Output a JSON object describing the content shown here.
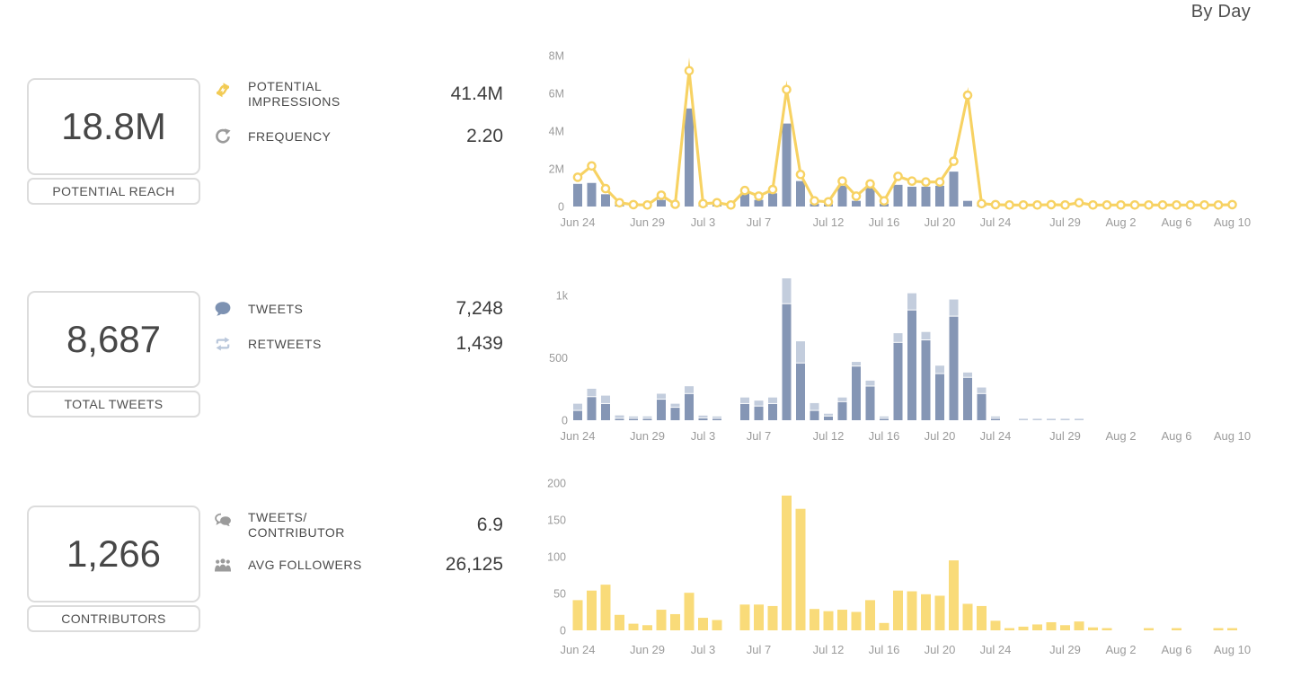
{
  "header": {
    "view_label": "By Day"
  },
  "rows": [
    {
      "total": {
        "value": "18.8M",
        "label": "POTENTIAL REACH"
      },
      "stats": [
        {
          "icon": "impressions-arrows-icon",
          "label": "POTENTIAL\nIMPRESSIONS",
          "value": "41.4M"
        },
        {
          "icon": "frequency-refresh-icon",
          "label": "FREQUENCY",
          "value": "2.20"
        }
      ]
    },
    {
      "total": {
        "value": "8,687",
        "label": "TOTAL TWEETS"
      },
      "stats": [
        {
          "icon": "tweet-bubble-icon",
          "label": "TWEETS",
          "value": "7,248"
        },
        {
          "icon": "retweet-icon",
          "label": "RETWEETS",
          "value": "1,439"
        }
      ]
    },
    {
      "total": {
        "value": "1,266",
        "label": "CONTRIBUTORS"
      },
      "stats": [
        {
          "icon": "tweets-per-contributor-icon",
          "label": "TWEETS/\nCONTRIBUTOR",
          "value": "6.9"
        },
        {
          "icon": "avg-followers-icon",
          "label": "AVG FOLLOWERS",
          "value": "26,125"
        }
      ]
    }
  ],
  "colors": {
    "accent_yellow": "#F7D263",
    "bar_yellow": "#F9DB79",
    "bar_blue": "#8596B5",
    "stack_light_blue": "#C3CDDD",
    "axis_text": "#9B9B9B"
  },
  "chart_data": [
    {
      "type": "bar",
      "subtype": "bar-plus-line",
      "title": "Potential reach (bars) and potential impressions (line) by day",
      "unit": "millions",
      "legend": "none",
      "grid": false,
      "ylim": [
        0,
        8
      ],
      "yticks": [
        {
          "v": 0,
          "label": "0"
        },
        {
          "v": 2,
          "label": "2M"
        },
        {
          "v": 4,
          "label": "4M"
        },
        {
          "v": 6,
          "label": "6M"
        },
        {
          "v": 8,
          "label": "8M"
        }
      ],
      "x": [
        "Jun 24",
        "Jun 25",
        "Jun 26",
        "Jun 27",
        "Jun 28",
        "Jun 29",
        "Jun 30",
        "Jul 1",
        "Jul 2",
        "Jul 3",
        "Jul 4",
        "Jul 5",
        "Jul 6",
        "Jul 7",
        "Jul 8",
        "Jul 9",
        "Jul 10",
        "Jul 11",
        "Jul 12",
        "Jul 13",
        "Jul 14",
        "Jul 15",
        "Jul 16",
        "Jul 17",
        "Jul 18",
        "Jul 19",
        "Jul 20",
        "Jul 21",
        "Jul 22",
        "Jul 23",
        "Jul 24",
        "Jul 25",
        "Jul 26",
        "Jul 27",
        "Jul 28",
        "Jul 29",
        "Jul 30",
        "Jul 31",
        "Aug 1",
        "Aug 2",
        "Aug 3",
        "Aug 4",
        "Aug 5",
        "Aug 6",
        "Aug 7",
        "Aug 8",
        "Aug 9",
        "Aug 10"
      ],
      "x_tick_indices": [
        0,
        5,
        9,
        13,
        18,
        22,
        26,
        30,
        35,
        39,
        43,
        47
      ],
      "series": [
        {
          "name": "Potential reach",
          "type": "bar",
          "values": [
            1.2,
            1.25,
            0.65,
            0.12,
            0.05,
            0.03,
            0.35,
            0.06,
            5.2,
            0.08,
            0.1,
            0.02,
            0.7,
            0.35,
            0.7,
            4.4,
            1.35,
            0.15,
            0.12,
            1.1,
            0.3,
            1.0,
            0.15,
            1.15,
            1.05,
            1.05,
            1.1,
            1.85,
            0.3,
            0.05,
            0,
            0,
            0,
            0,
            0.06,
            0,
            0,
            0,
            0,
            0,
            0,
            0,
            0,
            0,
            0,
            0,
            0,
            0
          ]
        },
        {
          "name": "Potential impressions",
          "type": "line",
          "values": [
            1.55,
            2.15,
            0.95,
            0.2,
            0.1,
            0.08,
            0.6,
            0.12,
            7.2,
            0.15,
            0.2,
            0.08,
            0.85,
            0.55,
            0.9,
            6.2,
            1.7,
            0.3,
            0.25,
            1.35,
            0.55,
            1.2,
            0.3,
            1.6,
            1.35,
            1.3,
            1.3,
            2.4,
            5.9,
            0.15,
            0.1,
            0.08,
            0.08,
            0.08,
            0.1,
            0.08,
            0.2,
            0.08,
            0.08,
            0.08,
            0.08,
            0.08,
            0.08,
            0.08,
            0.08,
            0.08,
            0.08,
            0.1
          ]
        }
      ]
    },
    {
      "type": "bar",
      "subtype": "stacked-bar",
      "title": "Tweets and retweets by day",
      "unit": "count",
      "legend": "none",
      "grid": false,
      "ylim": [
        0,
        1150
      ],
      "yticks": [
        {
          "v": 0,
          "label": "0"
        },
        {
          "v": 500,
          "label": "500"
        },
        {
          "v": 1000,
          "label": "1k"
        }
      ],
      "x": [
        "Jun 24",
        "Jun 25",
        "Jun 26",
        "Jun 27",
        "Jun 28",
        "Jun 29",
        "Jun 30",
        "Jul 1",
        "Jul 2",
        "Jul 3",
        "Jul 4",
        "Jul 5",
        "Jul 6",
        "Jul 7",
        "Jul 8",
        "Jul 9",
        "Jul 10",
        "Jul 11",
        "Jul 12",
        "Jul 13",
        "Jul 14",
        "Jul 15",
        "Jul 16",
        "Jul 17",
        "Jul 18",
        "Jul 19",
        "Jul 20",
        "Jul 21",
        "Jul 22",
        "Jul 23",
        "Jul 24",
        "Jul 25",
        "Jul 26",
        "Jul 27",
        "Jul 28",
        "Jul 29",
        "Jul 30",
        "Jul 31",
        "Aug 1",
        "Aug 2",
        "Aug 3",
        "Aug 4",
        "Aug 5",
        "Aug 6",
        "Aug 7",
        "Aug 8",
        "Aug 9",
        "Aug 10"
      ],
      "x_tick_indices": [
        0,
        5,
        9,
        13,
        18,
        22,
        26,
        30,
        35,
        39,
        43,
        47
      ],
      "series": [
        {
          "name": "Tweets",
          "type": "bar-stack-bottom",
          "values": [
            75,
            185,
            130,
            10,
            5,
            8,
            165,
            100,
            210,
            15,
            10,
            0,
            130,
            110,
            130,
            930,
            455,
            75,
            30,
            145,
            430,
            270,
            10,
            620,
            880,
            640,
            370,
            830,
            340,
            210,
            8,
            0,
            0,
            0,
            0,
            0,
            0,
            0,
            0,
            0,
            0,
            0,
            0,
            0,
            0,
            0,
            0,
            0
          ]
        },
        {
          "name": "Retweets",
          "type": "bar-stack-top",
          "values": [
            50,
            60,
            60,
            20,
            8,
            12,
            40,
            25,
            55,
            15,
            10,
            0,
            45,
            40,
            45,
            200,
            170,
            55,
            15,
            30,
            30,
            40,
            8,
            70,
            130,
            60,
            60,
            130,
            35,
            45,
            8,
            0,
            8,
            8,
            8,
            8,
            8,
            0,
            0,
            0,
            0,
            0,
            0,
            0,
            0,
            0,
            0,
            0
          ]
        }
      ]
    },
    {
      "type": "bar",
      "subtype": "single-bar",
      "title": "Contributors by day",
      "unit": "count",
      "legend": "none",
      "grid": false,
      "ylim": [
        0,
        200
      ],
      "yticks": [
        {
          "v": 0,
          "label": "0"
        },
        {
          "v": 50,
          "label": "50"
        },
        {
          "v": 100,
          "label": "100"
        },
        {
          "v": 150,
          "label": "150"
        },
        {
          "v": 200,
          "label": "200"
        }
      ],
      "x": [
        "Jun 24",
        "Jun 25",
        "Jun 26",
        "Jun 27",
        "Jun 28",
        "Jun 29",
        "Jun 30",
        "Jul 1",
        "Jul 2",
        "Jul 3",
        "Jul 4",
        "Jul 5",
        "Jul 6",
        "Jul 7",
        "Jul 8",
        "Jul 9",
        "Jul 10",
        "Jul 11",
        "Jul 12",
        "Jul 13",
        "Jul 14",
        "Jul 15",
        "Jul 16",
        "Jul 17",
        "Jul 18",
        "Jul 19",
        "Jul 20",
        "Jul 21",
        "Jul 22",
        "Jul 23",
        "Jul 24",
        "Jul 25",
        "Jul 26",
        "Jul 27",
        "Jul 28",
        "Jul 29",
        "Jul 30",
        "Jul 31",
        "Aug 1",
        "Aug 2",
        "Aug 3",
        "Aug 4",
        "Aug 5",
        "Aug 6",
        "Aug 7",
        "Aug 8",
        "Aug 9",
        "Aug 10"
      ],
      "x_tick_indices": [
        0,
        5,
        9,
        13,
        18,
        22,
        26,
        30,
        35,
        39,
        43,
        47
      ],
      "series": [
        {
          "name": "Contributors",
          "type": "bar",
          "values": [
            41,
            54,
            62,
            21,
            9,
            7,
            28,
            22,
            51,
            17,
            14,
            0,
            35,
            35,
            33,
            183,
            165,
            29,
            26,
            28,
            25,
            41,
            10,
            54,
            53,
            49,
            47,
            95,
            36,
            33,
            13,
            3,
            5,
            8,
            11,
            7,
            12,
            4,
            3,
            0,
            0,
            3,
            0,
            3,
            0,
            0,
            3,
            3
          ]
        }
      ]
    }
  ]
}
